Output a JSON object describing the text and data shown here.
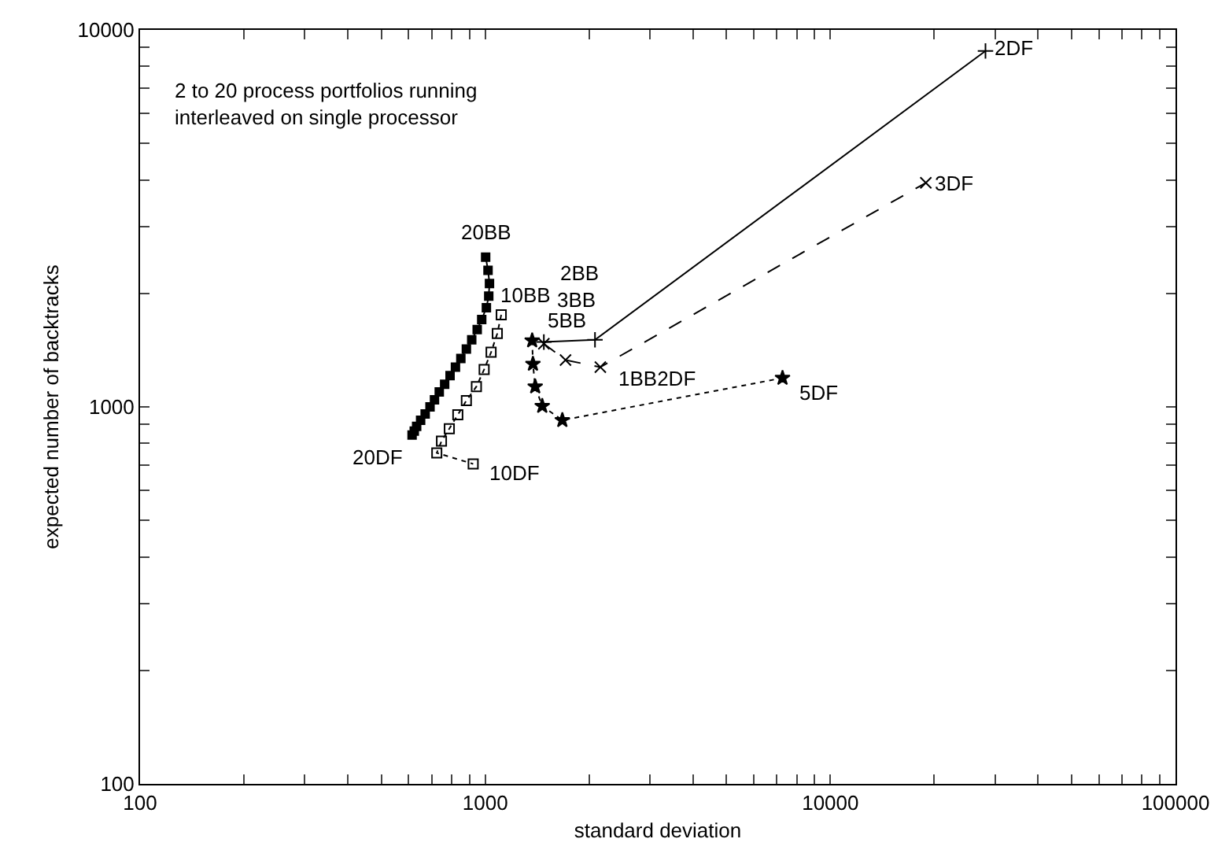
{
  "chart_data": {
    "type": "line",
    "xlabel": "standard deviation",
    "ylabel": "expected number of backtracks",
    "log": "xy",
    "xlim": [
      100,
      100000
    ],
    "ylim": [
      100,
      10000
    ],
    "xticks": [
      100,
      {
        "value": 200,
        "label": null
      },
      {
        "value": 300,
        "label": null
      },
      {
        "value": 400,
        "label": null
      },
      {
        "value": 500,
        "label": null
      },
      {
        "value": 600,
        "label": null
      },
      {
        "value": 700,
        "label": null
      },
      {
        "value": 800,
        "label": null
      },
      {
        "value": 900,
        "label": null
      },
      1000,
      {
        "value": 2000,
        "label": null
      },
      {
        "value": 3000,
        "label": null
      },
      {
        "value": 4000,
        "label": null
      },
      {
        "value": 5000,
        "label": null
      },
      {
        "value": 6000,
        "label": null
      },
      {
        "value": 7000,
        "label": null
      },
      {
        "value": 8000,
        "label": null
      },
      {
        "value": 9000,
        "label": null
      },
      10000,
      {
        "value": 20000,
        "label": null
      },
      {
        "value": 30000,
        "label": null
      },
      {
        "value": 40000,
        "label": null
      },
      {
        "value": 50000,
        "label": null
      },
      {
        "value": 60000,
        "label": null
      },
      {
        "value": 70000,
        "label": null
      },
      {
        "value": 80000,
        "label": null
      },
      {
        "value": 90000,
        "label": null
      },
      100000
    ],
    "yticks": [
      100,
      {
        "value": 200,
        "label": null
      },
      {
        "value": 300,
        "label": null
      },
      {
        "value": 400,
        "label": null
      },
      {
        "value": 500,
        "label": null
      },
      {
        "value": 600,
        "label": null
      },
      {
        "value": 700,
        "label": null
      },
      {
        "value": 800,
        "label": null
      },
      {
        "value": 900,
        "label": null
      },
      1000,
      {
        "value": 2000,
        "label": null
      },
      {
        "value": 3000,
        "label": null
      },
      {
        "value": 4000,
        "label": null
      },
      {
        "value": 5000,
        "label": null
      },
      {
        "value": 6000,
        "label": null
      },
      {
        "value": 7000,
        "label": null
      },
      {
        "value": 8000,
        "label": null
      },
      {
        "value": 9000,
        "label": null
      },
      10000
    ],
    "series": [
      {
        "color": "#000000",
        "marker": "cross",
        "line_style": "solid",
        "x": [
          1479,
          2080,
          28150
        ],
        "values": [
          1486,
          1507,
          8790
        ]
      },
      {
        "color": "#000000",
        "marker": "x",
        "line_style": "dashed",
        "x": [
          1479,
          1709,
          2156,
          18910
        ],
        "values": [
          1471,
          1331,
          1275,
          3930
        ]
      },
      {
        "color": "#000000",
        "marker": "star",
        "line_style": "dotted",
        "x": [
          1368,
          1375,
          1396,
          1463,
          1673,
          7268
        ],
        "values": [
          1500,
          1300,
          1132,
          1005,
          922,
          1193
        ]
      },
      {
        "color": "#000000",
        "marker": "square-open",
        "line_style": "dotted",
        "x": [
          1113,
          1084,
          1040,
          993,
          943,
          882,
          833,
          787,
          747,
          724,
          923
        ],
        "values": [
          1755,
          1566,
          1396,
          1257,
          1132,
          1039,
          953,
          875,
          811,
          755,
          706
        ]
      },
      {
        "color": "#000000",
        "marker": "square",
        "line_style": "solid",
        "x": [
          1003,
          1019,
          1029,
          1024,
          1008,
          977,
          948,
          914,
          882,
          850,
          820,
          791,
          763,
          736,
          713,
          692,
          670,
          650,
          633,
          623,
          614
        ],
        "values": [
          2497,
          2303,
          2124,
          1968,
          1832,
          1706,
          1603,
          1507,
          1423,
          1344,
          1275,
          1210,
          1148,
          1095,
          1044,
          1000,
          958,
          922,
          888,
          863,
          842
        ]
      }
    ],
    "annotations": [
      "2 to 20 process portfolios running\ninterleaved on single processor",
      {
        "text": "20BB",
        "x": 1003,
        "y": 2497
      },
      {
        "text": "20DF",
        "x": 614,
        "y": 842
      },
      {
        "text": "10BB",
        "x": 1113,
        "y": 1755
      },
      {
        "text": "10DF",
        "x": 923,
        "y": 706
      },
      {
        "text": "2BB",
        "x": 1479,
        "y": 1486
      },
      {
        "text": "3BB",
        "x": 1479,
        "y": 1471
      },
      {
        "text": "5BB",
        "x": 1368,
        "y": 1500
      },
      {
        "text": "1BB2DF",
        "x": 2156,
        "y": 1275
      },
      {
        "text": "2DF",
        "x": 28150,
        "y": 8790
      },
      {
        "text": "3DF",
        "x": 18910,
        "y": 3930
      },
      {
        "text": "5DF",
        "x": 7268,
        "y": 1193
      }
    ]
  }
}
